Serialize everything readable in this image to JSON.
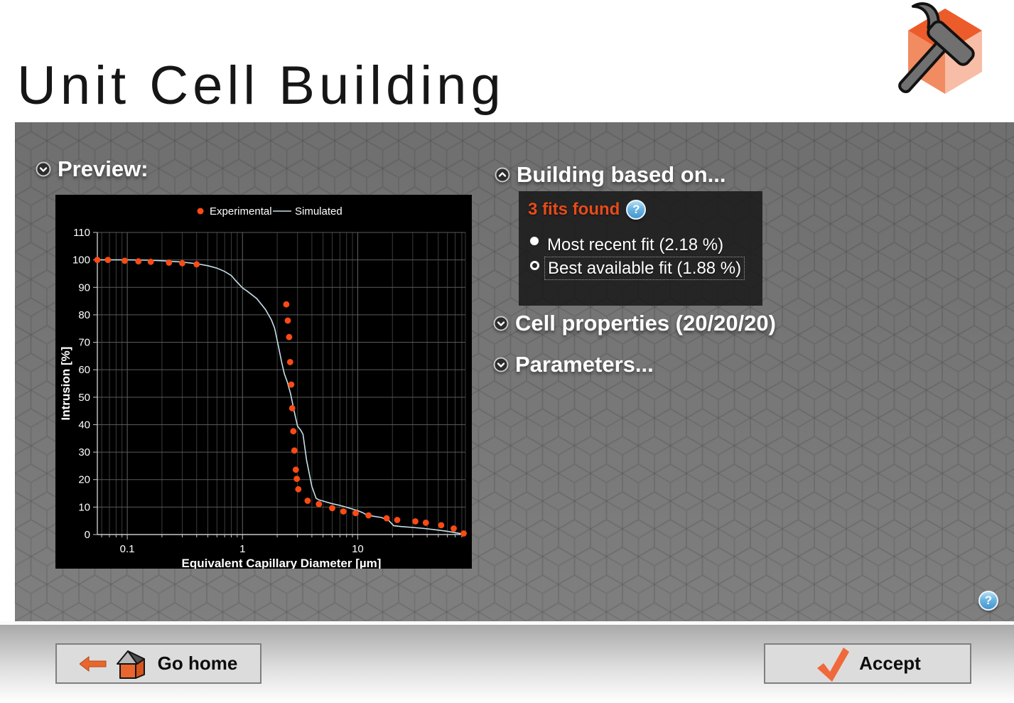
{
  "window": {
    "title": "Unit Cell Building"
  },
  "panel": {
    "preview": {
      "label": "Preview:"
    },
    "building": {
      "label": "Building based on...",
      "fits_found": "3 fits found",
      "options": [
        {
          "label": "Most recent fit (2.18 %)",
          "radio_style": "filled",
          "focused": false,
          "selected": false
        },
        {
          "label": "Best available fit (1.88 %)",
          "radio_style": "ring",
          "focused": true,
          "selected": true
        }
      ]
    },
    "cell_properties": {
      "label": "Cell properties (20/20/20)"
    },
    "parameters": {
      "label": "Parameters..."
    }
  },
  "footer": {
    "go_home_label": "Go home",
    "accept_label": "Accept"
  },
  "icons": {
    "help_glyph": "?",
    "preview_chevron": "chevron-down",
    "building_chevron": "chevron-up",
    "cell_properties_chevron": "chevron-down",
    "parameters_chevron": "chevron-down",
    "go_home_icons": [
      "arrow-left",
      "house-3d"
    ],
    "accept_icon": "checkmark",
    "logo": "hammer-and-cube"
  },
  "colors": {
    "accent_orange": "#e8561f",
    "fits_found_text": "#e84b1a",
    "chart_dot": "#fb4a14",
    "chart_line": "#c5dfe8",
    "help_blue": "#4495cf",
    "panel_gray": "#757575",
    "chart_background": "#000000"
  },
  "chart_data": {
    "type": "scatter",
    "title": "",
    "xlabel": "Equivalent Capillary Diameter [µm]",
    "ylabel": "Intrusion [%]",
    "x_scale": "log",
    "xlim": [
      0.055,
      86
    ],
    "ylim": [
      0,
      110
    ],
    "x_ticks": [
      0.1,
      1,
      10
    ],
    "y_ticks": [
      0,
      10,
      20,
      30,
      40,
      50,
      60,
      70,
      80,
      90,
      100,
      110
    ],
    "grid": true,
    "legend_position": "top-center",
    "background": "#000000",
    "legend": [
      "Experimental",
      "Simulated"
    ],
    "series": [
      {
        "name": "Experimental",
        "type": "scatter",
        "color": "#fb4a14",
        "points": [
          [
            0.055,
            100
          ],
          [
            0.068,
            100
          ],
          [
            0.095,
            99.7
          ],
          [
            0.125,
            99.5
          ],
          [
            0.16,
            99.3
          ],
          [
            0.23,
            99
          ],
          [
            0.3,
            98.8
          ],
          [
            0.4,
            98.4
          ],
          [
            2.4,
            83.8
          ],
          [
            2.47,
            77.9
          ],
          [
            2.54,
            71.9
          ],
          [
            2.59,
            62.8
          ],
          [
            2.65,
            54.6
          ],
          [
            2.7,
            46
          ],
          [
            2.76,
            37.6
          ],
          [
            2.82,
            30.6
          ],
          [
            2.9,
            23.6
          ],
          [
            2.96,
            20.3
          ],
          [
            3.05,
            16.5
          ],
          [
            3.67,
            12.3
          ],
          [
            4.6,
            11.1
          ],
          [
            6,
            9.6
          ],
          [
            7.5,
            8.4
          ],
          [
            9.6,
            7.8
          ],
          [
            12.4,
            7
          ],
          [
            17.8,
            5.9
          ],
          [
            22,
            5.3
          ],
          [
            31.6,
            4.8
          ],
          [
            39,
            4.3
          ],
          [
            53,
            3.4
          ],
          [
            68,
            2.2
          ],
          [
            83,
            0.4
          ]
        ]
      },
      {
        "name": "Simulated",
        "type": "line",
        "color": "#c5dfe8",
        "points": [
          [
            0.055,
            100
          ],
          [
            0.1,
            100
          ],
          [
            0.15,
            99.9
          ],
          [
            0.2,
            99.7
          ],
          [
            0.3,
            99.2
          ],
          [
            0.4,
            98.6
          ],
          [
            0.5,
            97.9
          ],
          [
            0.6,
            97
          ],
          [
            0.7,
            95.8
          ],
          [
            0.8,
            94.3
          ],
          [
            0.87,
            92.5
          ],
          [
            1,
            89.8
          ],
          [
            1.1,
            88.6
          ],
          [
            1.33,
            85.9
          ],
          [
            1.58,
            82
          ],
          [
            1.78,
            78.2
          ],
          [
            1.9,
            75.1
          ],
          [
            2.03,
            69.5
          ],
          [
            2.19,
            62.6
          ],
          [
            2.31,
            58.5
          ],
          [
            2.45,
            55.5
          ],
          [
            2.61,
            51.4
          ],
          [
            2.85,
            43.7
          ],
          [
            3,
            39.5
          ],
          [
            3.2,
            38
          ],
          [
            3.35,
            36.5
          ],
          [
            3.6,
            27
          ],
          [
            4,
            17.5
          ],
          [
            4.35,
            13.2
          ],
          [
            4.6,
            12.6
          ],
          [
            5,
            12.2
          ],
          [
            5.9,
            11.3
          ],
          [
            7,
            10.6
          ],
          [
            7.9,
            10
          ],
          [
            10,
            8.7
          ],
          [
            11,
            8
          ],
          [
            12,
            7.1
          ],
          [
            13,
            6.8
          ],
          [
            16,
            6.2
          ],
          [
            18.5,
            5.2
          ],
          [
            20.5,
            3.2
          ],
          [
            24,
            2.9
          ],
          [
            30,
            2.6
          ],
          [
            38,
            2.2
          ],
          [
            48,
            1.7
          ],
          [
            60,
            1.2
          ],
          [
            72,
            0.6
          ],
          [
            84,
            0.1
          ]
        ]
      }
    ]
  }
}
